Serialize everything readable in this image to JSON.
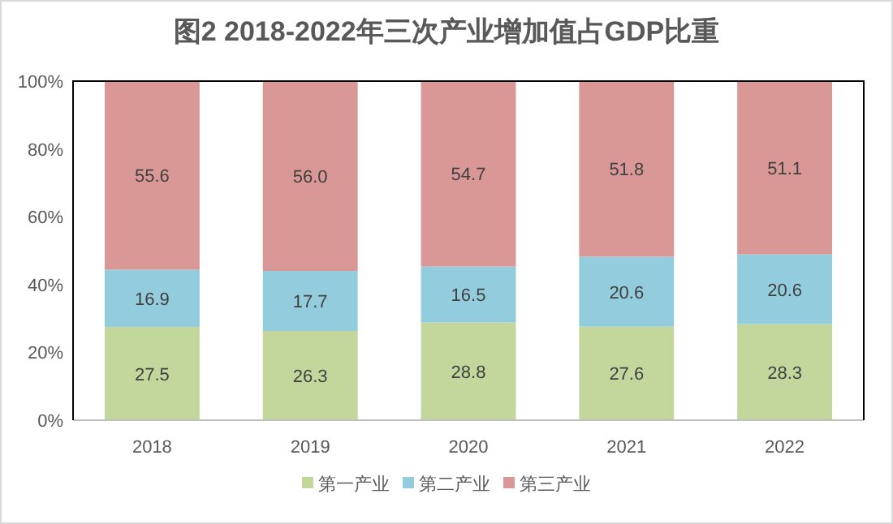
{
  "chart_data": {
    "type": "bar",
    "stacked": true,
    "title": "图2  2018-2022年三次产业增加值占GDP比重",
    "categories": [
      "2018",
      "2019",
      "2020",
      "2021",
      "2022"
    ],
    "series": [
      {
        "name": "第一产业",
        "color": "#c3d69b",
        "values": [
          27.5,
          26.3,
          28.8,
          27.6,
          28.3
        ],
        "value_labels": [
          "27.5",
          "26.3",
          "28.8",
          "27.6",
          "28.3"
        ]
      },
      {
        "name": "第二产业",
        "color": "#93cddd",
        "values": [
          16.9,
          17.7,
          16.5,
          20.6,
          20.6
        ],
        "value_labels": [
          "16.9",
          "17.7",
          "16.5",
          "20.6",
          "20.6"
        ]
      },
      {
        "name": "第三产业",
        "color": "#d99795",
        "values": [
          55.6,
          56.0,
          54.7,
          51.8,
          51.1
        ],
        "value_labels": [
          "55.6",
          "56.0",
          "54.7",
          "51.8",
          "51.1"
        ]
      }
    ],
    "ylim": [
      0,
      100
    ],
    "yticks": [
      {
        "value": 0,
        "label": "0%"
      },
      {
        "value": 20,
        "label": "20%"
      },
      {
        "value": 40,
        "label": "40%"
      },
      {
        "value": 60,
        "label": "60%"
      },
      {
        "value": 80,
        "label": "80%"
      },
      {
        "value": 100,
        "label": "100%"
      }
    ],
    "grid": false,
    "legend": "bottom"
  }
}
